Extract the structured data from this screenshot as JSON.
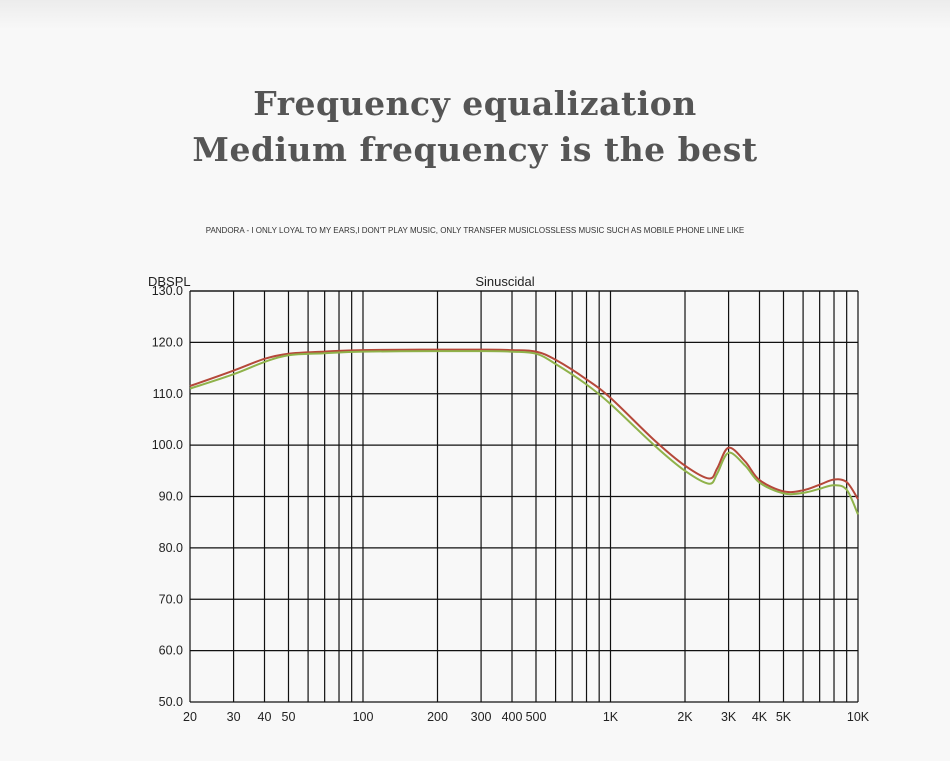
{
  "header": {
    "title_line1": "Frequency equalization",
    "title_line2": "Medium frequency is the best",
    "caption": "PANDORA - I ONLY LOYAL TO MY EARS,I DON'T PLAY MUSIC, ONLY TRANSFER MUSICLOSSLESS MUSIC SUCH AS MOBILE PHONE LINE LIKE"
  },
  "chart_data": {
    "type": "line",
    "title": "Sinuscidal",
    "ylabel": "DBSPL",
    "xlabel": "",
    "x_scale": "log",
    "xlim": [
      20,
      10000
    ],
    "ylim": [
      50,
      130
    ],
    "grid": true,
    "x_ticks": [
      {
        "value": 20,
        "label": "20"
      },
      {
        "value": 30,
        "label": "30"
      },
      {
        "value": 40,
        "label": "40"
      },
      {
        "value": 50,
        "label": "50"
      },
      {
        "value": 100,
        "label": "100"
      },
      {
        "value": 200,
        "label": "200"
      },
      {
        "value": 300,
        "label": "300"
      },
      {
        "value": 400,
        "label": "400"
      },
      {
        "value": 500,
        "label": "500"
      },
      {
        "value": 1000,
        "label": "1K"
      },
      {
        "value": 2000,
        "label": "2K"
      },
      {
        "value": 3000,
        "label": "3K"
      },
      {
        "value": 4000,
        "label": "4K"
      },
      {
        "value": 5000,
        "label": "5K"
      },
      {
        "value": 10000,
        "label": "10K"
      }
    ],
    "y_ticks": [
      {
        "value": 50,
        "label": "50.0"
      },
      {
        "value": 60,
        "label": "60.0"
      },
      {
        "value": 70,
        "label": "70.0"
      },
      {
        "value": 80,
        "label": "80.0"
      },
      {
        "value": 90,
        "label": "90.0"
      },
      {
        "value": 100,
        "label": "100.0"
      },
      {
        "value": 110,
        "label": "110.0"
      },
      {
        "value": 120,
        "label": "120.0"
      },
      {
        "value": 130,
        "label": "130.0"
      }
    ],
    "x_gridlines": [
      20,
      30,
      40,
      50,
      60,
      70,
      80,
      90,
      100,
      200,
      300,
      400,
      500,
      600,
      700,
      800,
      900,
      1000,
      2000,
      3000,
      4000,
      5000,
      6000,
      7000,
      8000,
      9000,
      10000
    ],
    "series": [
      {
        "color": "#b5483a",
        "x": [
          20,
          30,
          40,
          50,
          70,
          100,
          200,
          300,
          400,
          500,
          600,
          800,
          1000,
          1500,
          2000,
          2500,
          2700,
          3000,
          3500,
          4000,
          5000,
          6000,
          7000,
          8000,
          9000,
          10000
        ],
        "y": [
          111.5,
          114.5,
          116.8,
          117.8,
          118.2,
          118.5,
          118.6,
          118.6,
          118.5,
          118.2,
          116.6,
          112.8,
          109.2,
          101.0,
          96.0,
          93.5,
          95.5,
          99.5,
          96.8,
          93.2,
          91.0,
          91.2,
          92.3,
          93.3,
          92.8,
          89.5
        ]
      },
      {
        "color": "#8fb24a",
        "x": [
          20,
          30,
          40,
          50,
          70,
          100,
          200,
          300,
          400,
          500,
          600,
          800,
          1000,
          1500,
          2000,
          2500,
          2700,
          3000,
          3500,
          4000,
          5000,
          6000,
          7000,
          8000,
          9000,
          10000
        ],
        "y": [
          111.0,
          113.8,
          116.2,
          117.5,
          117.9,
          118.2,
          118.3,
          118.3,
          118.2,
          117.8,
          115.8,
          111.8,
          108.0,
          100.0,
          95.0,
          92.5,
          94.5,
          98.5,
          96.0,
          92.7,
          90.6,
          90.7,
          91.5,
          92.2,
          91.3,
          86.5
        ]
      }
    ]
  }
}
